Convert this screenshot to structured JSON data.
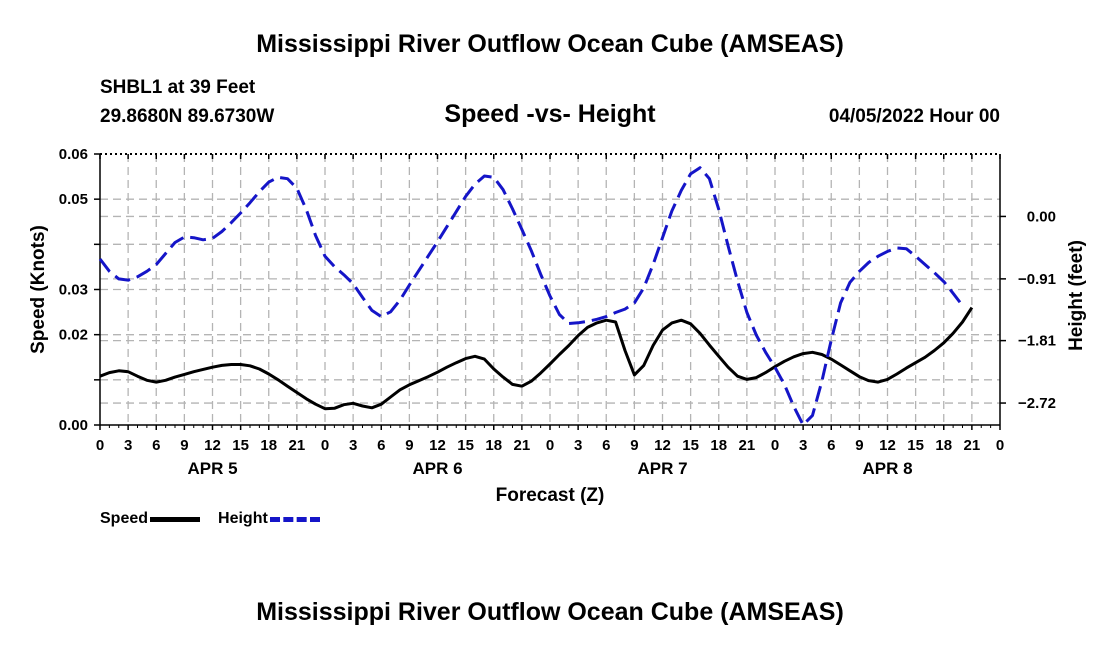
{
  "title": "Mississippi River Outflow Ocean Cube (AMSEAS)",
  "station": "SHBL1 at 39 Feet",
  "coordinates": "29.8680N  89.6730W",
  "subtitle": "Speed -vs- Height",
  "datetime": "04/05/2022 Hour 00",
  "footer_title": "Mississippi River Outflow Ocean Cube (AMSEAS)",
  "legend": {
    "speed": "Speed",
    "height": "Height"
  },
  "colors": {
    "speed": "#000000",
    "height": "#1515c8",
    "grid": "#b4b4b4"
  },
  "chart_data": {
    "type": "line",
    "title": "Speed -vs- Height",
    "xlabel": "Forecast (Z)",
    "ylabel": "Speed (Knots)",
    "y2label": "Height (feet)",
    "xlim": [
      0,
      96
    ],
    "ylim": [
      0,
      0.06
    ],
    "y2lim": [
      -3.04,
      0.91
    ],
    "grid": true,
    "legend_position": "bottom-left",
    "x_tick_labels": [
      "0",
      "3",
      "6",
      "9",
      "12",
      "15",
      "18",
      "21",
      "0",
      "3",
      "6",
      "9",
      "12",
      "15",
      "18",
      "21",
      "0",
      "3",
      "6",
      "9",
      "12",
      "15",
      "18",
      "21",
      "0",
      "3",
      "6",
      "9",
      "12",
      "15",
      "18",
      "21",
      "0"
    ],
    "day_labels": [
      {
        "label": "APR 5",
        "hour": 12
      },
      {
        "label": "APR 6",
        "hour": 36
      },
      {
        "label": "APR 7",
        "hour": 60
      },
      {
        "label": "APR 8",
        "hour": 84
      }
    ],
    "y_ticks": [
      0,
      0.01,
      0.02,
      0.03,
      0.04,
      0.05,
      0.06
    ],
    "y_tick_labels": [
      "0.00",
      "",
      "0.02",
      "0.03",
      "",
      "0.05",
      "0.06"
    ],
    "y2_ticks": [
      0.0,
      -0.91,
      -1.81,
      -2.72
    ],
    "y2_tick_labels": [
      "0.00",
      "−0.91",
      "−1.81",
      "−2.72"
    ],
    "series": [
      {
        "name": "Speed",
        "axis": "left",
        "style": "solid",
        "points": [
          [
            0,
            0.0108
          ],
          [
            1,
            0.0116
          ],
          [
            2,
            0.012
          ],
          [
            3,
            0.0118
          ],
          [
            4,
            0.0108
          ],
          [
            5,
            0.0099
          ],
          [
            6,
            0.0095
          ],
          [
            7,
            0.0099
          ],
          [
            8,
            0.0106
          ],
          [
            9,
            0.0112
          ],
          [
            10,
            0.0118
          ],
          [
            11,
            0.0123
          ],
          [
            12,
            0.0128
          ],
          [
            13,
            0.0132
          ],
          [
            14,
            0.0134
          ],
          [
            15,
            0.0134
          ],
          [
            16,
            0.0131
          ],
          [
            17,
            0.0124
          ],
          [
            18,
            0.0113
          ],
          [
            19,
            0.01
          ],
          [
            20,
            0.0086
          ],
          [
            21,
            0.0072
          ],
          [
            22,
            0.0058
          ],
          [
            23,
            0.0046
          ],
          [
            24,
            0.0036
          ],
          [
            25,
            0.0037
          ],
          [
            26,
            0.0045
          ],
          [
            27,
            0.0048
          ],
          [
            28,
            0.0042
          ],
          [
            29,
            0.0038
          ],
          [
            30,
            0.0046
          ],
          [
            31,
            0.0062
          ],
          [
            32,
            0.0078
          ],
          [
            33,
            0.0089
          ],
          [
            34,
            0.0098
          ],
          [
            35,
            0.0107
          ],
          [
            36,
            0.0117
          ],
          [
            37,
            0.0128
          ],
          [
            38,
            0.0138
          ],
          [
            39,
            0.0147
          ],
          [
            40,
            0.0152
          ],
          [
            41,
            0.0146
          ],
          [
            42,
            0.0124
          ],
          [
            43,
            0.0106
          ],
          [
            44,
            0.009
          ],
          [
            45,
            0.0086
          ],
          [
            46,
            0.0097
          ],
          [
            47,
            0.0115
          ],
          [
            48,
            0.0135
          ],
          [
            49,
            0.0156
          ],
          [
            50,
            0.0176
          ],
          [
            51,
            0.0198
          ],
          [
            52,
            0.0216
          ],
          [
            53,
            0.0226
          ],
          [
            54,
            0.0232
          ],
          [
            55,
            0.0228
          ],
          [
            56,
            0.0165
          ],
          [
            57,
            0.0111
          ],
          [
            58,
            0.0132
          ],
          [
            59,
            0.0176
          ],
          [
            60,
            0.021
          ],
          [
            61,
            0.0226
          ],
          [
            62,
            0.0232
          ],
          [
            63,
            0.0224
          ],
          [
            64,
            0.0203
          ],
          [
            65,
            0.0177
          ],
          [
            66,
            0.0152
          ],
          [
            67,
            0.0128
          ],
          [
            68,
            0.0108
          ],
          [
            69,
            0.0101
          ],
          [
            70,
            0.0105
          ],
          [
            71,
            0.0116
          ],
          [
            72,
            0.0129
          ],
          [
            73,
            0.0141
          ],
          [
            74,
            0.0151
          ],
          [
            75,
            0.0158
          ],
          [
            76,
            0.0161
          ],
          [
            77,
            0.0156
          ],
          [
            78,
            0.0146
          ],
          [
            79,
            0.0133
          ],
          [
            80,
            0.012
          ],
          [
            81,
            0.0107
          ],
          [
            82,
            0.0098
          ],
          [
            83,
            0.0095
          ],
          [
            84,
            0.0101
          ],
          [
            85,
            0.0113
          ],
          [
            86,
            0.0126
          ],
          [
            87,
            0.0138
          ],
          [
            88,
            0.015
          ],
          [
            89,
            0.0165
          ],
          [
            90,
            0.0182
          ],
          [
            91,
            0.0203
          ],
          [
            92,
            0.0228
          ],
          [
            93,
            0.026
          ]
        ]
      },
      {
        "name": "Height",
        "axis": "right",
        "style": "dashed",
        "points": [
          [
            0,
            -0.62
          ],
          [
            1,
            -0.8
          ],
          [
            2,
            -0.91
          ],
          [
            3,
            -0.93
          ],
          [
            4,
            -0.88
          ],
          [
            5,
            -0.8
          ],
          [
            6,
            -0.7
          ],
          [
            7,
            -0.54
          ],
          [
            8,
            -0.38
          ],
          [
            9,
            -0.3
          ],
          [
            10,
            -0.31
          ],
          [
            11,
            -0.34
          ],
          [
            12,
            -0.32
          ],
          [
            13,
            -0.22
          ],
          [
            14,
            -0.09
          ],
          [
            15,
            0.05
          ],
          [
            16,
            0.2
          ],
          [
            17,
            0.36
          ],
          [
            18,
            0.5
          ],
          [
            19,
            0.57
          ],
          [
            20,
            0.55
          ],
          [
            21,
            0.41
          ],
          [
            22,
            0.1
          ],
          [
            23,
            -0.28
          ],
          [
            24,
            -0.58
          ],
          [
            25,
            -0.73
          ],
          [
            26,
            -0.85
          ],
          [
            27,
            -0.98
          ],
          [
            28,
            -1.18
          ],
          [
            29,
            -1.37
          ],
          [
            30,
            -1.46
          ],
          [
            31,
            -1.39
          ],
          [
            32,
            -1.22
          ],
          [
            33,
            -1.0
          ],
          [
            34,
            -0.79
          ],
          [
            35,
            -0.58
          ],
          [
            36,
            -0.37
          ],
          [
            37,
            -0.15
          ],
          [
            38,
            0.07
          ],
          [
            39,
            0.29
          ],
          [
            40,
            0.47
          ],
          [
            41,
            0.59
          ],
          [
            42,
            0.57
          ],
          [
            43,
            0.39
          ],
          [
            44,
            0.11
          ],
          [
            45,
            -0.19
          ],
          [
            46,
            -0.5
          ],
          [
            47,
            -0.84
          ],
          [
            48,
            -1.16
          ],
          [
            49,
            -1.43
          ],
          [
            50,
            -1.56
          ],
          [
            51,
            -1.55
          ],
          [
            52,
            -1.53
          ],
          [
            53,
            -1.5
          ],
          [
            54,
            -1.46
          ],
          [
            55,
            -1.4
          ],
          [
            56,
            -1.35
          ],
          [
            57,
            -1.26
          ],
          [
            58,
            -1.04
          ],
          [
            59,
            -0.7
          ],
          [
            60,
            -0.31
          ],
          [
            61,
            0.08
          ],
          [
            62,
            0.38
          ],
          [
            63,
            0.62
          ],
          [
            64,
            0.71
          ],
          [
            65,
            0.55
          ],
          [
            66,
            0.1
          ],
          [
            67,
            -0.43
          ],
          [
            68,
            -0.94
          ],
          [
            69,
            -1.4
          ],
          [
            70,
            -1.73
          ],
          [
            71,
            -1.98
          ],
          [
            72,
            -2.2
          ],
          [
            73,
            -2.45
          ],
          [
            74,
            -2.77
          ],
          [
            75,
            -3.04
          ],
          [
            76,
            -2.9
          ],
          [
            77,
            -2.4
          ],
          [
            78,
            -1.8
          ],
          [
            79,
            -1.26
          ],
          [
            80,
            -0.96
          ],
          [
            81,
            -0.8
          ],
          [
            82,
            -0.67
          ],
          [
            83,
            -0.58
          ],
          [
            84,
            -0.51
          ],
          [
            85,
            -0.46
          ],
          [
            86,
            -0.47
          ],
          [
            87,
            -0.58
          ],
          [
            88,
            -0.7
          ],
          [
            89,
            -0.82
          ],
          [
            90,
            -0.95
          ],
          [
            91,
            -1.12
          ],
          [
            92,
            -1.3
          ]
        ]
      }
    ]
  }
}
